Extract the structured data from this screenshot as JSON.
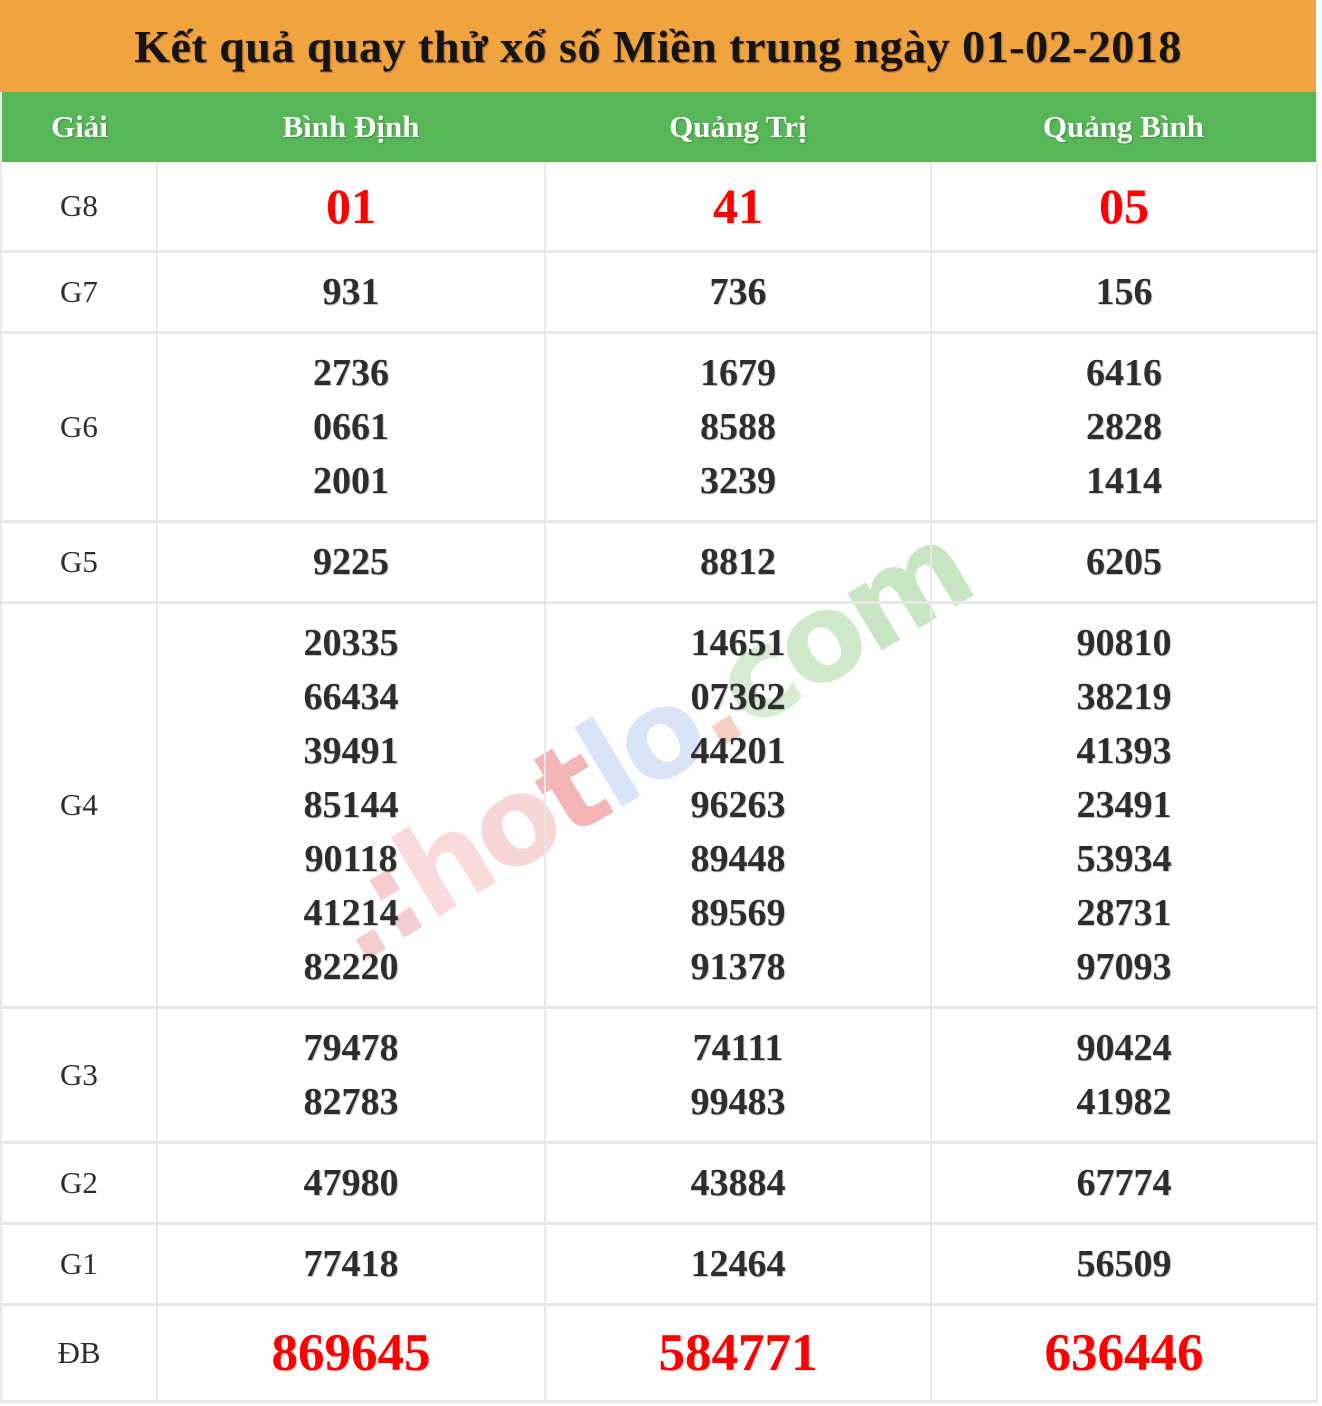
{
  "title": "Kết quả quay thử xổ số Miền trung ngày 01-02-2018",
  "columns": [
    "Giải",
    "Bình Định",
    "Quảng Trị",
    "Quảng Bình"
  ],
  "rows": [
    {
      "label": "G8",
      "highlight": true,
      "values": [
        [
          "01"
        ],
        [
          "41"
        ],
        [
          "05"
        ]
      ]
    },
    {
      "label": "G7",
      "highlight": false,
      "values": [
        [
          "931"
        ],
        [
          "736"
        ],
        [
          "156"
        ]
      ]
    },
    {
      "label": "G6",
      "highlight": false,
      "values": [
        [
          "2736",
          "0661",
          "2001"
        ],
        [
          "1679",
          "8588",
          "3239"
        ],
        [
          "6416",
          "2828",
          "1414"
        ]
      ]
    },
    {
      "label": "G5",
      "highlight": false,
      "values": [
        [
          "9225"
        ],
        [
          "8812"
        ],
        [
          "6205"
        ]
      ]
    },
    {
      "label": "G4",
      "highlight": false,
      "values": [
        [
          "20335",
          "66434",
          "39491",
          "85144",
          "90118",
          "41214",
          "82220"
        ],
        [
          "14651",
          "07362",
          "44201",
          "96263",
          "89448",
          "89569",
          "91378"
        ],
        [
          "90810",
          "38219",
          "41393",
          "23491",
          "53934",
          "28731",
          "97093"
        ]
      ]
    },
    {
      "label": "G3",
      "highlight": false,
      "values": [
        [
          "79478",
          "82783"
        ],
        [
          "74111",
          "99483"
        ],
        [
          "90424",
          "41982"
        ]
      ]
    },
    {
      "label": "G2",
      "highlight": false,
      "values": [
        [
          "47980"
        ],
        [
          "43884"
        ],
        [
          "67774"
        ]
      ]
    },
    {
      "label": "G1",
      "highlight": false,
      "values": [
        [
          "77418"
        ],
        [
          "12464"
        ],
        [
          "56509"
        ]
      ]
    },
    {
      "label": "ĐB",
      "highlight": true,
      "values": [
        [
          "869645"
        ],
        [
          "584771"
        ],
        [
          "636446"
        ]
      ]
    }
  ],
  "watermark": {
    "text": ".:hotlo.com",
    "letters": [
      {
        "ch": ".",
        "color": "#f5ccd0"
      },
      {
        "ch": ":",
        "color": "#f5ccd0"
      },
      {
        "ch": "h",
        "color": "#f9dbdb"
      },
      {
        "ch": "o",
        "color": "#f8d6d6"
      },
      {
        "ch": "t",
        "color": "#f3b5b5"
      },
      {
        "ch": "l",
        "color": "#d9e5f6"
      },
      {
        "ch": "o",
        "color": "#d9e5f6"
      },
      {
        "ch": ".",
        "color": "#f8cfc3"
      },
      {
        "ch": "c",
        "color": "#d7edd3"
      },
      {
        "ch": "o",
        "color": "#cfe9ca"
      },
      {
        "ch": "m",
        "color": "#c8e6c3"
      }
    ]
  },
  "colors": {
    "title_bg": "#efa440",
    "header_bg": "#57b657",
    "header_text": "#ffffff",
    "number_text": "#2d2d2d",
    "highlight_text": "#fc0101",
    "grid_line": "#e8e8e8"
  }
}
